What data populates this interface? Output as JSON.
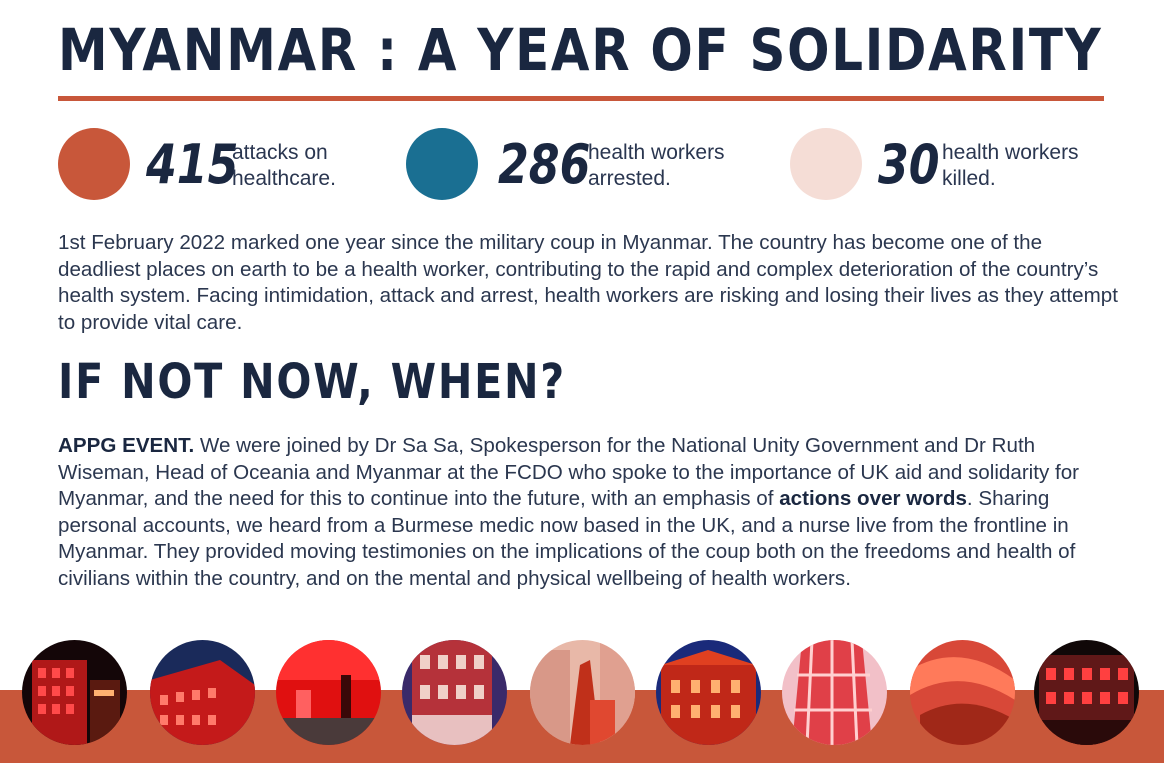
{
  "header": {
    "title": "MYANMAR : A YEAR OF SOLIDARITY"
  },
  "colors": {
    "accent": "#c8573a",
    "blue": "#1a6f92",
    "pink": "#f5ddd6",
    "navy": "#1a2740"
  },
  "stats": [
    {
      "number": "415",
      "line1": "attacks on",
      "line2": "healthcare.",
      "color": "#c8573a"
    },
    {
      "number": "286",
      "line1": "health workers",
      "line2": "arrested.",
      "color": "#1a6f92"
    },
    {
      "number": "30",
      "line1": "health workers",
      "line2": "killed.",
      "color": "#f5ddd6"
    }
  ],
  "intro": "1st February 2022 marked one year since the military coup in Myanmar. The country has become one of the deadliest places on earth to be a health worker, contributing to the rapid and complex deterioration of the country’s health system. Facing intimidation, attack and arrest, health workers are risking and losing their lives as they attempt to provide vital care.",
  "section": {
    "subtitle": "IF NOT NOW, WHEN?",
    "lead": "APPG EVENT.",
    "text_a": " We were joined by Dr Sa Sa, Spokesperson for the National Unity Government and Dr Ruth Wiseman, Head of Oceania and Myanmar at the FCDO who spoke to the importance of UK aid and solidarity for Myanmar, and the need for this to continue into the future, with an emphasis of ",
    "emphasis": "actions over words",
    "text_b": ". Sharing personal accounts, we heard from a Burmese medic now based in the UK, and a nurse live from the frontline in Myanmar. They provided moving testimonies on the implications of the coup both on the freedoms and health of civilians within the country, and on the mental and physical wellbeing of health workers."
  },
  "photos": [
    {
      "name": "red-lit-building-1"
    },
    {
      "name": "red-lit-building-2"
    },
    {
      "name": "red-lit-building-3"
    },
    {
      "name": "red-lit-building-4"
    },
    {
      "name": "red-lit-statue"
    },
    {
      "name": "red-lit-building-5"
    },
    {
      "name": "red-lit-building-6"
    },
    {
      "name": "red-lit-building-7"
    },
    {
      "name": "red-lit-building-8"
    }
  ]
}
